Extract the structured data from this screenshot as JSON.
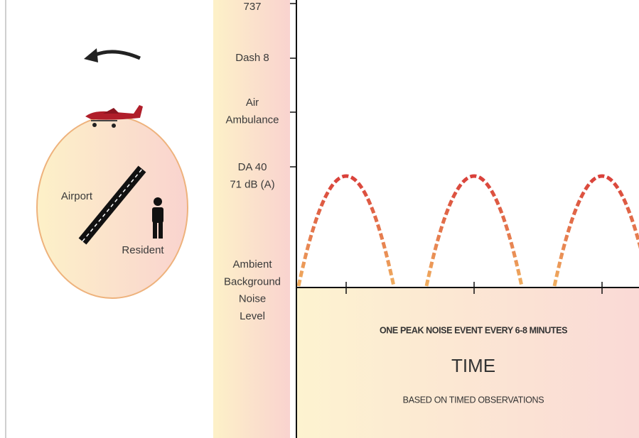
{
  "map": {
    "labels": {
      "airport": "Airport",
      "resident": "Resident"
    }
  },
  "noise_levels": [
    {
      "lines": [
        "737"
      ]
    },
    {
      "lines": [
        "Dash 8"
      ]
    },
    {
      "lines": [
        "Air",
        "Ambulance"
      ]
    },
    {
      "lines": [
        "DA 40",
        "71 dB (A)"
      ]
    },
    {
      "lines": [
        "Ambient",
        "Background",
        "Noise",
        "Level"
      ]
    }
  ],
  "time_panel": {
    "caption": "ONE PEAK NOISE EVENT EVERY 6-8 MINUTES",
    "axis_title": "TIME",
    "note": "BASED ON TIMED OBSERVATIONS"
  }
}
